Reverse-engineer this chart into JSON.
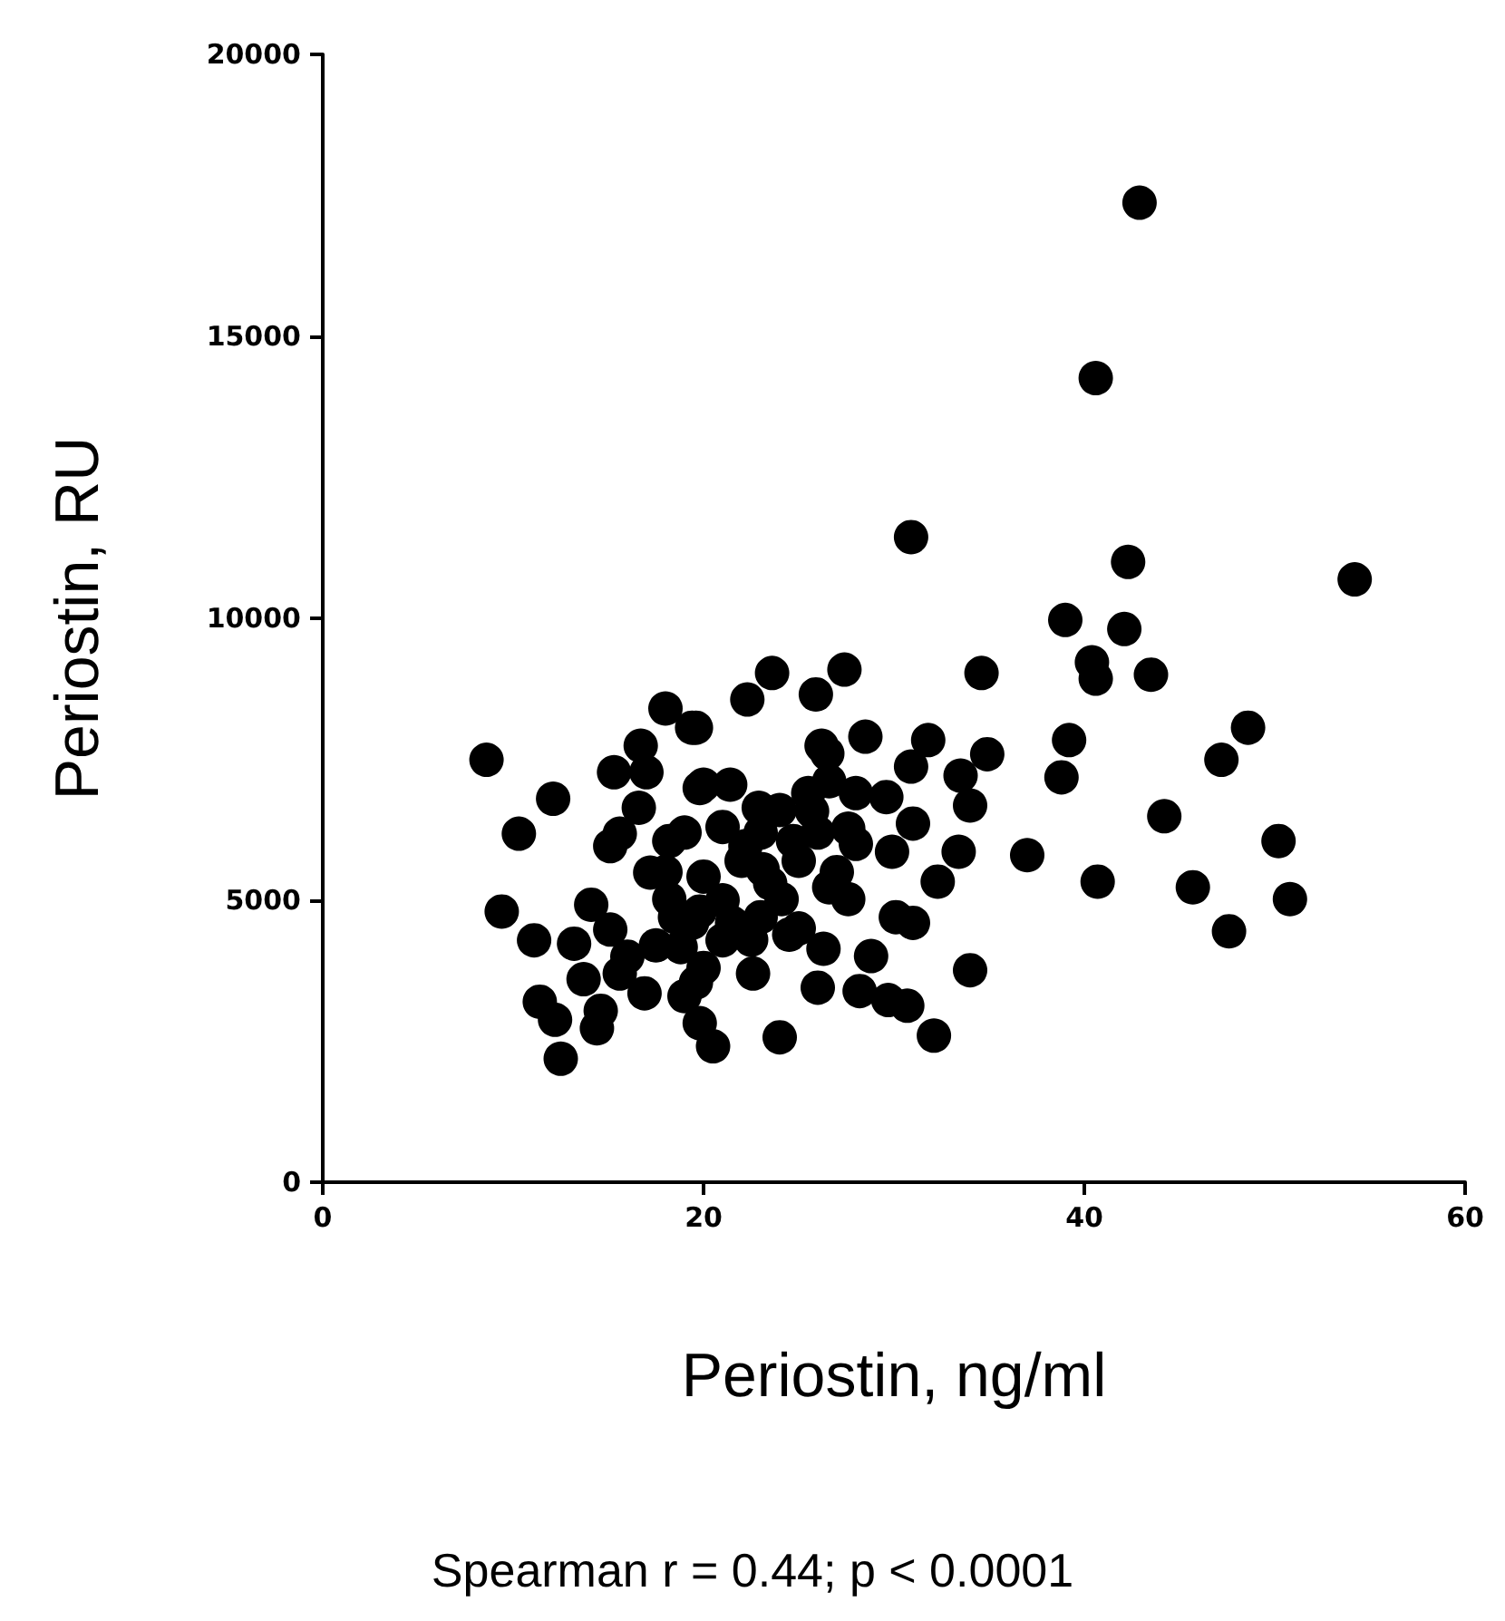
{
  "chart_data": {
    "type": "scatter",
    "xlabel": "Periostin, ng/ml",
    "ylabel": "Periostin, RU",
    "annotations": [
      "Spearman r = 0.44; p < 0.0001"
    ],
    "xlim": [
      0,
      60
    ],
    "ylim": [
      0,
      20000
    ],
    "xticks": [
      0,
      20,
      40,
      60
    ],
    "yticks": [
      0,
      5000,
      10000,
      15000,
      20000
    ],
    "marker": "circle",
    "series": [
      {
        "color": "#000000",
        "x": [
          42.9,
          40.6,
          42.3,
          54.2,
          39.0,
          42.1,
          40.4,
          40.6,
          43.5,
          39.2,
          38.8,
          48.6,
          47.2,
          44.2,
          50.2,
          40.7,
          45.7,
          50.8,
          47.6,
          37.0,
          30.9,
          23.6,
          27.4,
          22.3,
          25.9,
          34.6,
          19.6,
          26.2,
          28.5,
          31.8,
          30.9,
          34.9,
          33.5,
          34.0,
          29.6,
          31.0,
          29.9,
          33.4,
          32.3,
          20.0,
          21.4,
          22.9,
          26.6,
          27.6,
          25.7,
          24.7,
          22.2,
          26.6,
          27.6,
          30.1,
          31.0,
          24.1,
          24.5,
          26.3,
          28.8,
          19.8,
          21.0,
          22.6,
          26.0,
          28.2,
          29.7,
          30.7,
          34.0,
          32.1,
          24.0,
          20.5,
          19.6,
          20.0,
          23.1,
          8.6,
          12.1,
          10.3,
          9.4,
          11.1,
          11.4,
          12.2,
          12.5,
          13.7,
          14.4,
          14.6,
          14.1,
          13.2,
          15.1,
          15.1,
          15.6,
          15.3,
          16.7,
          17.0,
          18.0,
          19.4,
          16.6,
          17.2,
          18.2,
          15.6,
          16.9,
          18.8,
          18.2,
          19.4,
          19.8,
          19.8,
          18,
          19,
          21,
          21.5,
          22,
          23,
          23.5,
          24,
          25,
          25.5,
          17.5,
          16,
          19,
          20,
          22.5,
          25,
          26,
          27,
          28,
          28,
          26.5,
          23,
          21,
          18.5
        ],
        "values": [
          17370,
          14260,
          11000,
          10690,
          9970,
          9810,
          9220,
          8930,
          9000,
          7840,
          7180,
          8060,
          7490,
          6490,
          6050,
          5330,
          5230,
          5020,
          4450,
          5800,
          11440,
          9030,
          9090,
          8560,
          8650,
          9030,
          8060,
          7740,
          7900,
          7840,
          7370,
          7590,
          7210,
          6680,
          6830,
          6360,
          5860,
          5860,
          5330,
          7050,
          7050,
          6640,
          7110,
          6270,
          6580,
          6050,
          5960,
          5230,
          5020,
          4700,
          4600,
          5020,
          4390,
          4140,
          4010,
          4800,
          4290,
          3700,
          3450,
          3390,
          3230,
          3130,
          3760,
          2600,
          2570,
          2410,
          3540,
          5420,
          5550,
          7490,
          6800,
          6180,
          4800,
          4290,
          3200,
          2880,
          2190,
          3600,
          2730,
          3040,
          4920,
          4230,
          4480,
          5960,
          6180,
          7270,
          7740,
          7270,
          8400,
          8060,
          6640,
          5490,
          6050,
          3700,
          3350,
          4170,
          5020,
          4600,
          2820,
          6990,
          5500,
          6200,
          5000,
          4600,
          5700,
          6200,
          5300,
          6600,
          5700,
          6900,
          4200,
          4000,
          3300,
          3800,
          4300,
          4500,
          6200,
          5500,
          6000,
          6900,
          7600,
          4700,
          6300,
          4700
        ]
      }
    ]
  }
}
